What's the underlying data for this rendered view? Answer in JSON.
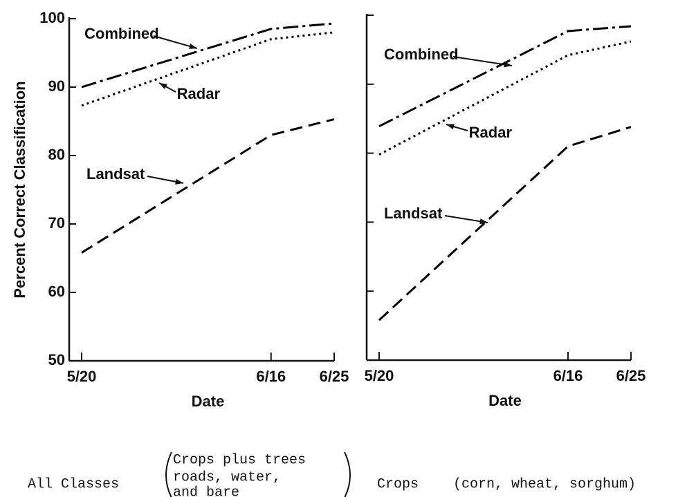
{
  "chart_data": [
    {
      "type": "line",
      "x": [
        "5/20",
        "6/16",
        "6/25"
      ],
      "xlabel": "Date",
      "ylabel": "Percent Correct Classification",
      "ylim": [
        50,
        100
      ],
      "yticks": [
        50,
        60,
        70,
        80,
        90,
        100
      ],
      "ytick_labels_shown": true,
      "series": [
        {
          "name": "Combined",
          "color": "#000000",
          "style": "dashdot",
          "values": [
            90,
            98.5,
            99.3
          ]
        },
        {
          "name": "Radar",
          "color": "#000000",
          "style": "dotted",
          "values": [
            87.3,
            97,
            98
          ]
        },
        {
          "name": "Landsat",
          "color": "#000000",
          "style": "dashed",
          "values": [
            65.8,
            83,
            85.3
          ]
        }
      ],
      "caption": "All Classes",
      "caption_detail": [
        "Crops plus trees",
        "roads, water,",
        "and bare"
      ]
    },
    {
      "type": "line",
      "x": [
        "5/20",
        "6/16",
        "6/25"
      ],
      "xlabel": "Date",
      "ylim": [
        50,
        100
      ],
      "yticks": [
        50,
        60,
        70,
        80,
        90,
        100
      ],
      "ytick_labels_shown": false,
      "series": [
        {
          "name": "Combined",
          "color": "#000000",
          "style": "dashdot",
          "values": [
            83.9,
            97.7,
            98.4
          ]
        },
        {
          "name": "Radar",
          "color": "#000000",
          "style": "dotted",
          "values": [
            79.8,
            94.2,
            96.2
          ]
        },
        {
          "name": "Landsat",
          "color": "#000000",
          "style": "dashed",
          "values": [
            55.8,
            81,
            83.8
          ]
        }
      ],
      "caption": "Crops",
      "caption_detail": [
        "(corn, wheat, sorghum)"
      ]
    }
  ]
}
